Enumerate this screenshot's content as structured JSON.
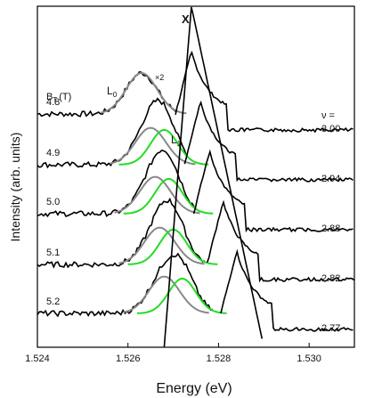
{
  "chart_data": {
    "type": "line",
    "xlabel": "Energy (eV)",
    "ylabel": "Intensity (arb. units)",
    "xlim": [
      1.524,
      1.531
    ],
    "xticks": [
      "1.524",
      "1.526",
      "1.528",
      "1.530"
    ],
    "xtick_values": [
      1.524,
      1.526,
      1.528,
      1.53
    ],
    "field_header": "B",
    "field_header_sub": "T",
    "field_header_unit": "(T)",
    "nu_header": "ν =",
    "peak_label": "X",
    "multiplier_label": "×2",
    "component_labels": [
      {
        "text": "L",
        "sub": "0",
        "color": "#888888"
      },
      {
        "text": "L",
        "sub": "1",
        "color": "#22dd22"
      }
    ],
    "series": [
      {
        "field": "4.8",
        "nu": "3.00",
        "L0": 1.5263,
        "L1": null,
        "X": 1.5274
      },
      {
        "field": "4.9",
        "nu": "2.94",
        "L0": 1.5265,
        "L1": 1.5268,
        "X": 1.5276
      },
      {
        "field": "5.0",
        "nu": "2.88",
        "L0": 1.5266,
        "L1": 1.5269,
        "X": 1.5278
      },
      {
        "field": "5.1",
        "nu": "2.82",
        "L0": 1.5267,
        "L1": 1.527,
        "X": 1.5281
      },
      {
        "field": "5.2",
        "nu": "2.77",
        "L0": 1.5268,
        "L1": 1.5272,
        "X": 1.5284
      }
    ],
    "colors": {
      "data": "#000000",
      "L0_fit": "#888888",
      "L1_fit": "#22dd22"
    },
    "grid": false
  }
}
